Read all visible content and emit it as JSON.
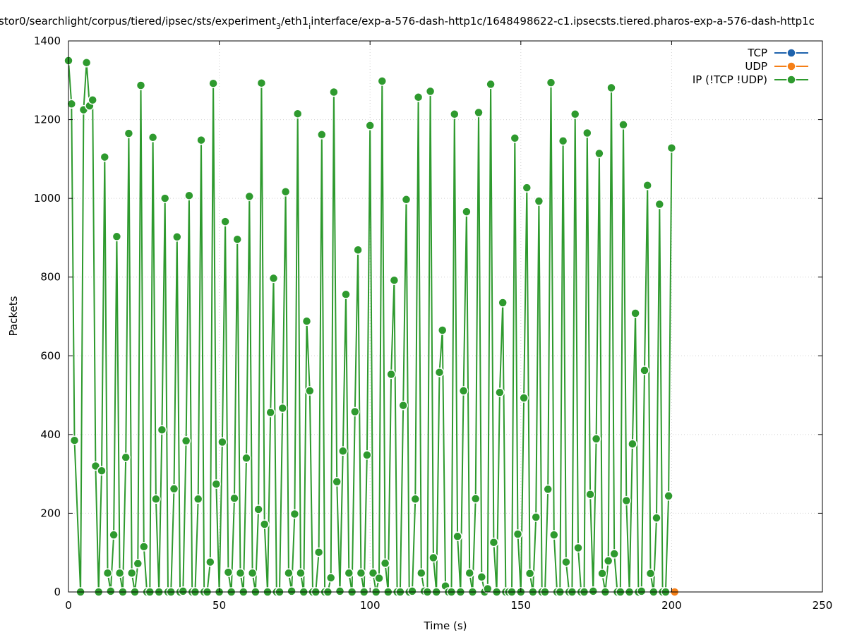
{
  "chart_data": {
    "type": "line",
    "title": "stor0/searchlight/corpus/tiered/ipsec/sts/experiment_3/eth1_interface/exp-a-576-dash-http1c/1648498622-c1.ipsecsts.tiered.pharos-exp-a-576-dash-http1c",
    "title_parts": [
      "stor0/searchlight/corpus/tiered/ipsec/sts/experiment",
      "3",
      "/eth1",
      "interface/exp-a-576-dash-http1c/1648498622-c1.ipsecsts.tiered.pharos-exp-a-576-dash-http1c"
    ],
    "xlabel": "Time (s)",
    "ylabel": "Packets",
    "xlim": [
      0,
      250
    ],
    "ylim": [
      0,
      1400
    ],
    "xticks": [
      "0",
      "50",
      "100",
      "150",
      "200",
      "250"
    ],
    "yticks": [
      "0",
      "200",
      "400",
      "600",
      "800",
      "1000",
      "1200",
      "1400"
    ],
    "grid": true,
    "legend_position": "top-right",
    "colors": {
      "tcp": "#1f63ad",
      "udp": "#f57f17",
      "ip": "#2e9a2e"
    },
    "series": [
      {
        "name": "TCP",
        "x": [],
        "values": []
      },
      {
        "name": "UDP",
        "x": [
          201
        ],
        "values": [
          0
        ]
      },
      {
        "name": "IP (!TCP  !UDP)",
        "x": [
          0,
          1,
          2,
          4,
          5,
          6,
          7,
          8,
          9,
          10,
          11,
          12,
          13,
          14,
          15,
          16,
          17,
          18,
          19,
          20,
          21,
          22,
          23,
          24,
          25,
          26,
          27,
          28,
          29,
          30,
          31,
          32,
          33,
          34,
          35,
          36,
          37,
          38,
          39,
          40,
          41,
          42,
          43,
          44,
          45,
          46,
          47,
          48,
          49,
          50,
          51,
          52,
          53,
          54,
          55,
          56,
          57,
          58,
          59,
          60,
          61,
          62,
          63,
          64,
          65,
          66,
          67,
          68,
          69,
          70,
          71,
          72,
          73,
          74,
          75,
          76,
          77,
          78,
          79,
          80,
          81,
          82,
          83,
          84,
          85,
          86,
          87,
          88,
          89,
          90,
          91,
          92,
          93,
          94,
          95,
          96,
          97,
          98,
          99,
          100,
          101,
          102,
          103,
          104,
          105,
          106,
          107,
          108,
          109,
          110,
          111,
          112,
          113,
          114,
          115,
          116,
          117,
          118,
          119,
          120,
          121,
          122,
          123,
          124,
          125,
          126,
          127,
          128,
          129,
          130,
          131,
          132,
          133,
          134,
          135,
          136,
          137,
          138,
          139,
          140,
          141,
          142,
          143,
          144,
          145,
          146,
          147,
          148,
          149,
          150,
          151,
          152,
          153,
          154,
          155,
          156,
          157,
          158,
          159,
          160,
          161,
          162,
          163,
          164,
          165,
          166,
          167,
          168,
          169,
          170,
          171,
          172,
          173,
          174,
          175,
          176,
          177,
          178,
          179,
          180,
          181,
          182,
          183,
          184,
          185,
          186,
          187,
          188,
          189,
          190,
          191,
          192,
          193,
          194,
          195,
          196,
          197,
          198,
          199,
          200
        ],
        "values": [
          1350,
          1240,
          385,
          0,
          1225,
          1345,
          1235,
          1250,
          320,
          0,
          308,
          1105,
          48,
          2,
          145,
          903,
          48,
          0,
          342,
          1165,
          48,
          0,
          72,
          1287,
          115,
          0,
          0,
          1155,
          236,
          0,
          412,
          1000,
          0,
          0,
          262,
          902,
          0,
          2,
          384,
          1007,
          0,
          0,
          236,
          1148,
          0,
          0,
          76,
          1292,
          274,
          0,
          381,
          941,
          50,
          0,
          238,
          896,
          48,
          0,
          340,
          1005,
          48,
          0,
          210,
          1293,
          172,
          0,
          456,
          797,
          0,
          0,
          467,
          1017,
          48,
          2,
          198,
          1215,
          48,
          0,
          688,
          511,
          0,
          0,
          101,
          1162,
          0,
          0,
          36,
          1270,
          280,
          2,
          358,
          756,
          48,
          0,
          458,
          869,
          48,
          0,
          348,
          1185,
          48,
          0,
          35,
          1298,
          73,
          0,
          553,
          792,
          0,
          0,
          474,
          997,
          0,
          2,
          236,
          1257,
          48,
          2,
          0,
          1272,
          87,
          0,
          558,
          665,
          15,
          0,
          0,
          1214,
          141,
          0,
          511,
          966,
          48,
          0,
          237,
          1218,
          38,
          0,
          8,
          1290,
          126,
          0,
          507,
          735,
          0,
          0,
          0,
          1153,
          147,
          0,
          493,
          1027,
          47,
          0,
          190,
          993,
          0,
          0,
          261,
          1294,
          145,
          0,
          0,
          1146,
          76,
          0,
          0,
          1214,
          112,
          0,
          0,
          1166,
          248,
          2,
          389,
          1114,
          47,
          0,
          79,
          1281,
          97,
          0,
          0,
          1187,
          232,
          0,
          376,
          708,
          0,
          2,
          563,
          1033,
          47,
          0,
          188,
          985,
          0,
          0,
          244,
          1128
        ]
      }
    ]
  },
  "legend": {
    "tcp": "TCP",
    "udp": "UDP",
    "ip": "IP (!TCP  !UDP)"
  }
}
